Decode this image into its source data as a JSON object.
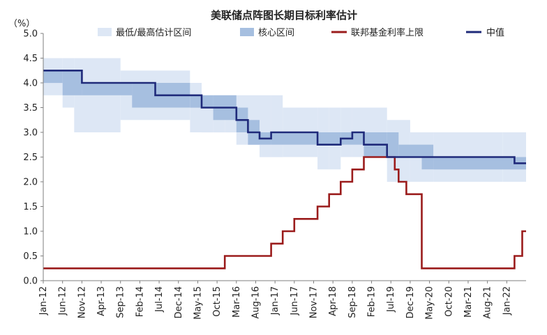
{
  "chart_data": {
    "type": "line",
    "title": "美联储点阵图长期目标利率估计",
    "y_unit": "（%）",
    "ylim": [
      0,
      5
    ],
    "y_ticks": [
      "0.0",
      "0.5",
      "1.0",
      "1.5",
      "2.0",
      "2.5",
      "3.0",
      "3.5",
      "4.0",
      "4.5",
      "5.0"
    ],
    "x_range": [
      "2012-01",
      "2022-06"
    ],
    "x_tick_labels": [
      "Jan-12",
      "Jun-12",
      "Nov-12",
      "Apr-13",
      "Sep-13",
      "Feb-14",
      "Jul-14",
      "Dec-14",
      "May-15",
      "Oct-15",
      "Mar-16",
      "Aug-16",
      "Jan-17",
      "Jun-17",
      "Nov-17",
      "Apr-18",
      "Sep-18",
      "Feb-19",
      "Jul-19",
      "Dec-19",
      "May-20",
      "Oct-20",
      "Mar-21",
      "Aug-21",
      "Jan-22"
    ],
    "legend_position": "top",
    "series": [
      {
        "name": "最低/最高估计区间",
        "style": "band",
        "color": "#dde7f5",
        "data": [
          {
            "from": "2012-01",
            "to": "2012-06",
            "low": 3.75,
            "high": 4.5
          },
          {
            "from": "2012-06",
            "to": "2012-09",
            "low": 3.5,
            "high": 4.5
          },
          {
            "from": "2012-09",
            "to": "2013-03",
            "low": 3.0,
            "high": 4.5
          },
          {
            "from": "2013-03",
            "to": "2013-09",
            "low": 3.0,
            "high": 4.5
          },
          {
            "from": "2013-09",
            "to": "2014-06",
            "low": 3.25,
            "high": 4.25
          },
          {
            "from": "2014-06",
            "to": "2015-03",
            "low": 3.25,
            "high": 4.25
          },
          {
            "from": "2015-03",
            "to": "2015-06",
            "low": 3.0,
            "high": 4.0
          },
          {
            "from": "2015-06",
            "to": "2015-09",
            "low": 3.0,
            "high": 3.75
          },
          {
            "from": "2015-09",
            "to": "2015-12",
            "low": 3.0,
            "high": 3.75
          },
          {
            "from": "2015-12",
            "to": "2016-03",
            "low": 3.0,
            "high": 3.75
          },
          {
            "from": "2016-03",
            "to": "2016-09",
            "low": 2.75,
            "high": 3.75
          },
          {
            "from": "2016-09",
            "to": "2016-12",
            "low": 2.5,
            "high": 3.75
          },
          {
            "from": "2016-12",
            "to": "2017-03",
            "low": 2.5,
            "high": 3.75
          },
          {
            "from": "2017-03",
            "to": "2017-12",
            "low": 2.5,
            "high": 3.5
          },
          {
            "from": "2017-12",
            "to": "2018-03",
            "low": 2.25,
            "high": 3.5
          },
          {
            "from": "2018-03",
            "to": "2018-06",
            "low": 2.25,
            "high": 3.5
          },
          {
            "from": "2018-06",
            "to": "2018-09",
            "low": 2.5,
            "high": 3.5
          },
          {
            "from": "2018-09",
            "to": "2018-12",
            "low": 2.5,
            "high": 3.5
          },
          {
            "from": "2018-12",
            "to": "2019-06",
            "low": 2.5,
            "high": 3.5
          },
          {
            "from": "2019-06",
            "to": "2019-12",
            "low": 2.0,
            "high": 3.25
          },
          {
            "from": "2019-12",
            "to": "2020-06",
            "low": 2.0,
            "high": 3.0
          },
          {
            "from": "2020-06",
            "to": "2021-12",
            "low": 2.0,
            "high": 3.0
          },
          {
            "from": "2021-12",
            "to": "2022-06",
            "low": 2.0,
            "high": 3.0
          }
        ]
      },
      {
        "name": "核心区间",
        "style": "band",
        "color": "#a6bfe0",
        "data": [
          {
            "from": "2012-01",
            "to": "2012-06",
            "low": 4.0,
            "high": 4.25
          },
          {
            "from": "2012-06",
            "to": "2012-11",
            "low": 3.75,
            "high": 4.25
          },
          {
            "from": "2012-11",
            "to": "2013-12",
            "low": 3.75,
            "high": 4.0
          },
          {
            "from": "2013-12",
            "to": "2014-06",
            "low": 3.5,
            "high": 4.0
          },
          {
            "from": "2014-06",
            "to": "2015-03",
            "low": 3.5,
            "high": 4.0
          },
          {
            "from": "2015-03",
            "to": "2015-09",
            "low": 3.5,
            "high": 3.75
          },
          {
            "from": "2015-09",
            "to": "2016-03",
            "low": 3.25,
            "high": 3.75
          },
          {
            "from": "2016-03",
            "to": "2016-06",
            "low": 3.0,
            "high": 3.5
          },
          {
            "from": "2016-06",
            "to": "2016-09",
            "low": 2.75,
            "high": 3.25
          },
          {
            "from": "2016-09",
            "to": "2016-12",
            "low": 2.75,
            "high": 3.0
          },
          {
            "from": "2016-12",
            "to": "2017-12",
            "low": 2.75,
            "high": 3.0
          },
          {
            "from": "2017-12",
            "to": "2018-06",
            "low": 2.75,
            "high": 3.0
          },
          {
            "from": "2018-06",
            "to": "2018-12",
            "low": 2.75,
            "high": 3.0
          },
          {
            "from": "2018-12",
            "to": "2019-06",
            "low": 2.5,
            "high": 3.0
          },
          {
            "from": "2019-06",
            "to": "2019-09",
            "low": 2.5,
            "high": 3.0
          },
          {
            "from": "2019-09",
            "to": "2020-03",
            "low": 2.5,
            "high": 2.75
          },
          {
            "from": "2020-03",
            "to": "2020-06",
            "low": 2.25,
            "high": 2.75
          },
          {
            "from": "2020-06",
            "to": "2022-06",
            "low": 2.25,
            "high": 2.5
          }
        ]
      },
      {
        "name": "联邦基金利率上限",
        "style": "step",
        "color": "#9b1c1c",
        "data": [
          {
            "x": "2012-01",
            "y": 0.25
          },
          {
            "x": "2015-12",
            "y": 0.5
          },
          {
            "x": "2016-12",
            "y": 0.75
          },
          {
            "x": "2017-03",
            "y": 1.0
          },
          {
            "x": "2017-06",
            "y": 1.25
          },
          {
            "x": "2017-12",
            "y": 1.5
          },
          {
            "x": "2018-03",
            "y": 1.75
          },
          {
            "x": "2018-06",
            "y": 2.0
          },
          {
            "x": "2018-09",
            "y": 2.25
          },
          {
            "x": "2018-12",
            "y": 2.5
          },
          {
            "x": "2019-08",
            "y": 2.25
          },
          {
            "x": "2019-09",
            "y": 2.0
          },
          {
            "x": "2019-11",
            "y": 1.75
          },
          {
            "x": "2020-03",
            "y": 1.25
          },
          {
            "x": "2020-03",
            "y": 0.25
          },
          {
            "x": "2022-03",
            "y": 0.5
          },
          {
            "x": "2022-05",
            "y": 1.0
          },
          {
            "x": "2022-06",
            "y": 1.0
          }
        ]
      },
      {
        "name": "中值",
        "style": "step",
        "color": "#1f2a7a",
        "data": [
          {
            "x": "2012-01",
            "y": 4.25
          },
          {
            "x": "2012-11",
            "y": 4.0
          },
          {
            "x": "2014-06",
            "y": 3.75
          },
          {
            "x": "2015-06",
            "y": 3.5
          },
          {
            "x": "2015-12",
            "y": 3.5
          },
          {
            "x": "2016-03",
            "y": 3.25
          },
          {
            "x": "2016-06",
            "y": 3.0
          },
          {
            "x": "2016-09",
            "y": 2.875
          },
          {
            "x": "2016-12",
            "y": 3.0
          },
          {
            "x": "2017-12",
            "y": 2.75
          },
          {
            "x": "2018-06",
            "y": 2.875
          },
          {
            "x": "2018-09",
            "y": 3.0
          },
          {
            "x": "2018-12",
            "y": 2.75
          },
          {
            "x": "2019-06",
            "y": 2.5
          },
          {
            "x": "2022-03",
            "y": 2.375
          },
          {
            "x": "2022-06",
            "y": 2.375
          }
        ]
      }
    ]
  }
}
